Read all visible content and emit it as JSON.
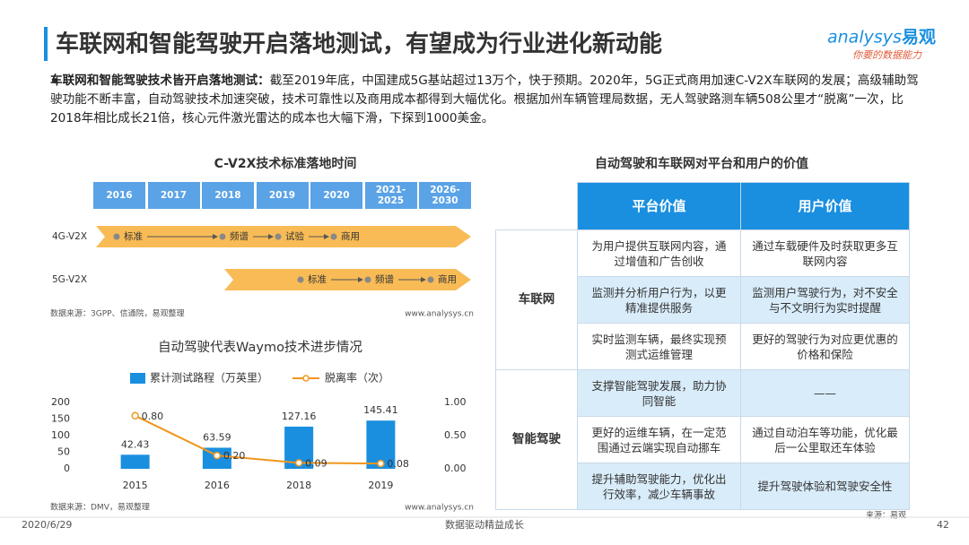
{
  "header": {
    "title": "车联网和智能驾驶开启落地测试，有望成为行业进化新动能",
    "logo": {
      "brand": "analysys",
      "brand_cn": "易观",
      "slogan": "你要的数据能力"
    }
  },
  "summary": {
    "lead": "车联网和智能驾驶技术皆开启落地测试：",
    "text": "截至2019年底，中国建成5G基站超过13万个，快于预期。2020年，5G正式商用加速C-V2X车联网的发展；高级辅助驾驶功能不断丰富，自动驾驶技术加速突破，技术可靠性以及商用成本都得到大幅优化。根据加州车辆管理局数据，无人驾驶路测车辆508公里才“脱离”一次，比2018年相比成长21倍，核心元件激光雷达的成本也大幅下滑，下探到1000美金。"
  },
  "timeline": {
    "title": "C-V2X技术标准落地时间",
    "periods": [
      "2016",
      "2017",
      "2018",
      "2019",
      "2020",
      "2021-2025",
      "2026-2030"
    ],
    "rows": [
      {
        "label": "4G-V2X",
        "stages": [
          "标准",
          "频谱",
          "试验",
          "商用"
        ]
      },
      {
        "label": "5G-V2X",
        "stages": [
          "标准",
          "频谱",
          "商用"
        ]
      }
    ],
    "source": "数据来源：3GPP、信通院，易观整理",
    "site": "www.analysys.cn"
  },
  "chart_data": {
    "type": "bar",
    "title": "自动驾驶代表Waymo技术进步情况",
    "categories": [
      "2015",
      "2016",
      "2018",
      "2019"
    ],
    "series": [
      {
        "name": "累计测试路程（万英里）",
        "color": "#1a8fe0",
        "values": [
          42.43,
          63.59,
          127.16,
          145.41
        ]
      },
      {
        "name": "脱离率（次）",
        "type": "line",
        "axis": "y2",
        "color": "#f0961e",
        "values": [
          0.8,
          0.2,
          0.09,
          0.08
        ],
        "value_labels": [
          "0.80",
          "0.20",
          "0.09",
          "0.08"
        ]
      }
    ],
    "ylim": [
      0,
      200
    ],
    "yticks": [
      0,
      50,
      100,
      150,
      200
    ],
    "y2lim": [
      0,
      1
    ],
    "y2ticks": [
      {
        "value": 0,
        "label": "0.00"
      },
      {
        "value": 0.5,
        "label": "0.50"
      },
      {
        "value": 1,
        "label": "1.00"
      }
    ],
    "grid": false,
    "legend": "top",
    "source": "数据来源：DMV，易观整理",
    "site": "www.analysys.cn"
  },
  "value_table": {
    "title": "自动驾驶和车联网对平台和用户的价值",
    "headers": [
      "平台价值",
      "用户价值"
    ],
    "groups": [
      {
        "label": "车联网",
        "rows": [
          [
            "为用户提供互联网内容，通过增值和广告创收",
            "通过车载硬件及时获取更多互联网内容"
          ],
          [
            "监测并分析用户行为，以更精准提供服务",
            "监测用户驾驶行为，对不安全与不文明行为实时提醒"
          ],
          [
            "实时监测车辆，最终实现预测式运维管理",
            "更好的驾驶行为对应更优惠的价格和保险"
          ]
        ]
      },
      {
        "label": "智能驾驶",
        "rows": [
          [
            "支撑智能驾驶发展，助力协同智能",
            "——"
          ],
          [
            "更好的运维车辆，在一定范围通过云端实现自动挪车",
            "通过自动泊车等功能，优化最后一公里取还车体验"
          ],
          [
            "提升辅助驾驶能力，优化出行效率，减少车辆事故",
            "提升驾驶体验和驾驶安全性"
          ]
        ]
      }
    ],
    "source": "来源：易观"
  },
  "footer": {
    "date": "2020/6/29",
    "slogan": "数据驱动精益成长",
    "page": "42"
  }
}
